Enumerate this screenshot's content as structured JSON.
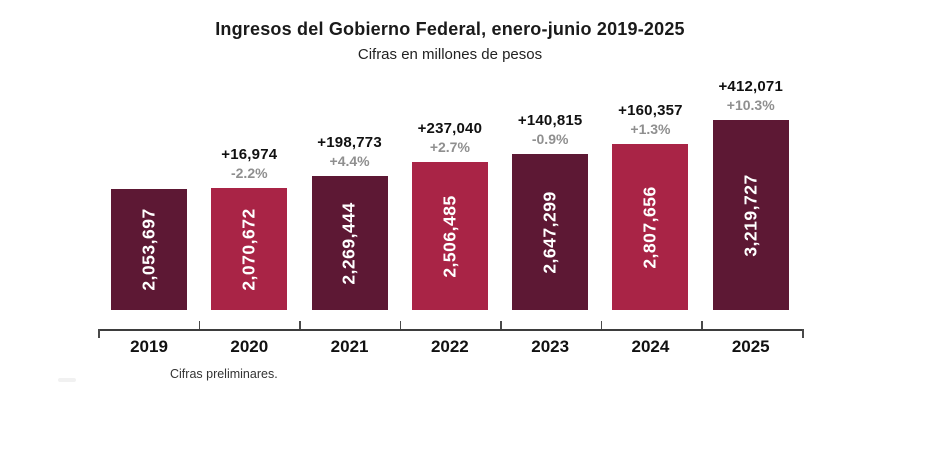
{
  "chart": {
    "title": "Ingresos del Gobierno Federal, enero-junio 2019-2025",
    "subtitle": "Cifras en millones de pesos",
    "footnote": "Cifras preliminares."
  },
  "chart_data": {
    "type": "bar",
    "title": "Ingresos del Gobierno Federal, enero-junio 2019-2025",
    "subtitle": "Cifras en millones de pesos",
    "footnote": "Cifras preliminares.",
    "unit": "millones de pesos",
    "categories": [
      "2019",
      "2020",
      "2021",
      "2022",
      "2023",
      "2024",
      "2025"
    ],
    "values": [
      2053697,
      2070672,
      2269444,
      2506485,
      2647299,
      2807656,
      3219727
    ],
    "value_labels": [
      "2,053,697",
      "2,070,672",
      "2,269,444",
      "2,506,485",
      "2,647,299",
      "2,807,656",
      "3,219,727"
    ],
    "change_abs_labels": [
      "",
      "+16,974",
      "+198,773",
      "+237,040",
      "+140,815",
      "+160,357",
      "+412,071"
    ],
    "change_pct_labels": [
      "",
      "-2.2%",
      "+4.4%",
      "+2.7%",
      "-0.9%",
      "+1.3%",
      "+10.3%"
    ],
    "bar_colors": [
      "#5d1834",
      "#a92446",
      "#5d1834",
      "#a92446",
      "#5d1834",
      "#a92446",
      "#5d1834"
    ],
    "colors": {
      "bar_dark": "#5d1834",
      "bar_crimson": "#a92446",
      "annotation_value": "#111111",
      "annotation_pct": "#8f8f8f",
      "bar_value_text": "#ffffff",
      "axis": "#3d3d3d",
      "background": "#ffffff"
    },
    "ylim": [
      0,
      3400000
    ],
    "grid": false,
    "legend": false,
    "bar_value_labels_rotated": true
  }
}
